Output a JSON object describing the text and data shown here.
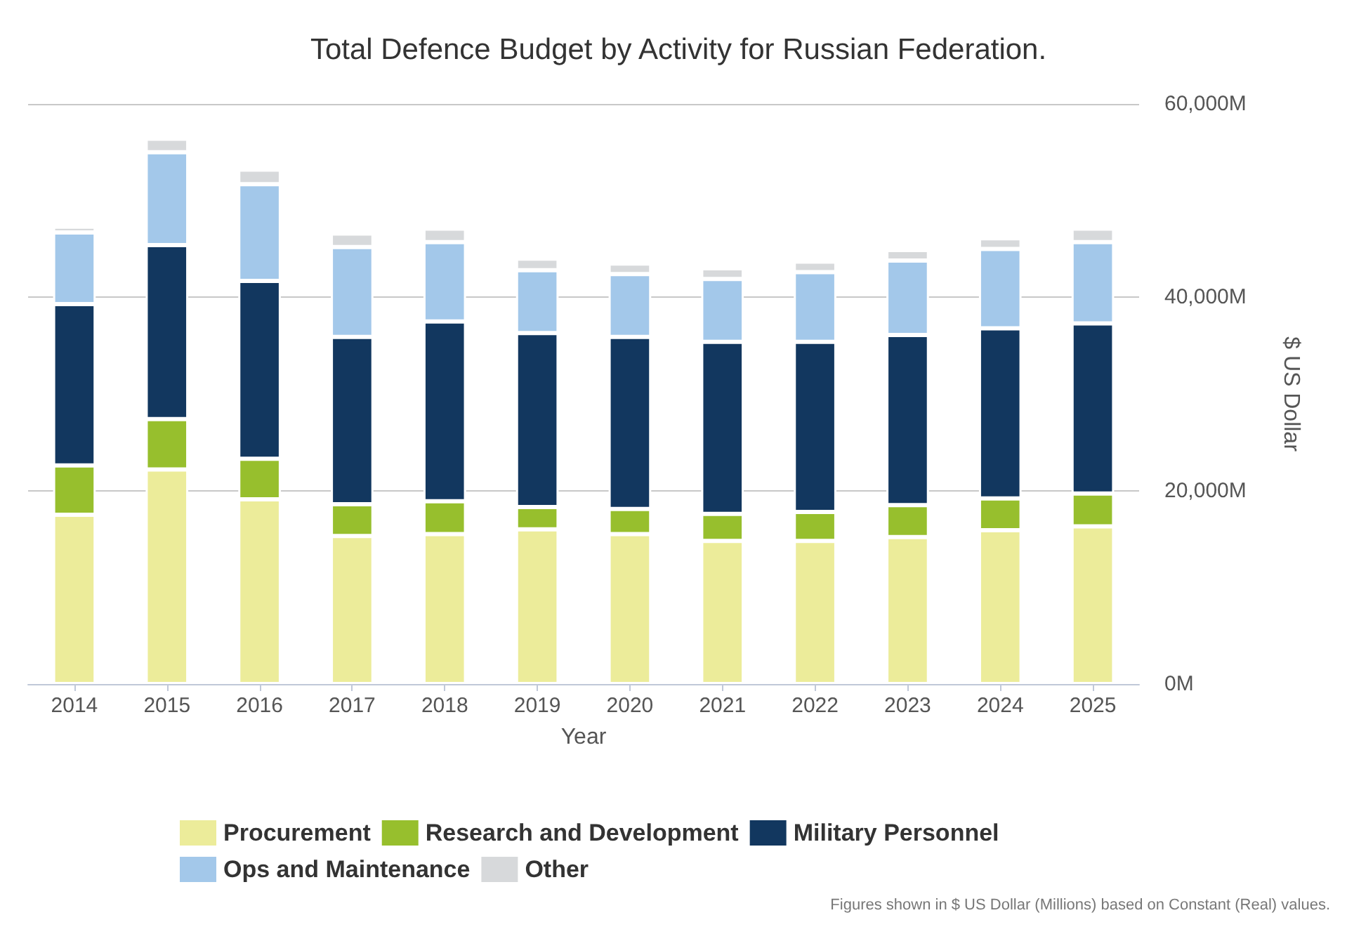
{
  "chart_data": {
    "type": "bar",
    "stacked": true,
    "title": "Total Defence Budget by Activity for Russian Federation.",
    "xlabel": "Year",
    "y2label": "$ US Dollar",
    "categories": [
      "2014",
      "2015",
      "2016",
      "2017",
      "2018",
      "2019",
      "2020",
      "2021",
      "2022",
      "2023",
      "2024",
      "2025"
    ],
    "series": [
      {
        "name": "Procurement",
        "color": "#ecec9a",
        "axis": "y2",
        "values": [
          17500,
          22200,
          19100,
          15300,
          15500,
          16000,
          15500,
          14800,
          14800,
          15200,
          15900,
          16300
        ]
      },
      {
        "name": "Research and Development",
        "color": "#97bf2d",
        "axis": "y2",
        "values": [
          5100,
          5200,
          4200,
          3300,
          3400,
          2300,
          2600,
          2800,
          3000,
          3300,
          3300,
          3400
        ]
      },
      {
        "name": "Military Personnel",
        "color": "#12375f",
        "axis": "y2",
        "values": [
          16700,
          18000,
          18400,
          17300,
          18600,
          18000,
          17800,
          17800,
          17600,
          17600,
          17600,
          17600
        ]
      },
      {
        "name": "Ops and Maintenance",
        "color": "#a3c8ea",
        "axis": "y2",
        "values": [
          7400,
          9600,
          10000,
          9300,
          8200,
          6500,
          6500,
          6500,
          7200,
          7700,
          8200,
          8400
        ]
      },
      {
        "name": "Other",
        "color": "#d7d9db",
        "axis": "y2",
        "values": [
          600,
          1400,
          1500,
          1400,
          1400,
          1200,
          1100,
          1100,
          1100,
          1100,
          1100,
          1400
        ]
      }
    ],
    "y2lim": [
      0,
      60000
    ],
    "y2ticks": [
      {
        "value": 0,
        "label": "0M"
      },
      {
        "value": 20000,
        "label": "20,000M"
      },
      {
        "value": 40000,
        "label": "40,000M"
      },
      {
        "value": 60000,
        "label": "60,000M"
      }
    ],
    "grid": "y",
    "legend": "bottom",
    "annotations": [
      "Figures shown in $ US Dollar (Millions) based on Constant (Real) values."
    ]
  }
}
